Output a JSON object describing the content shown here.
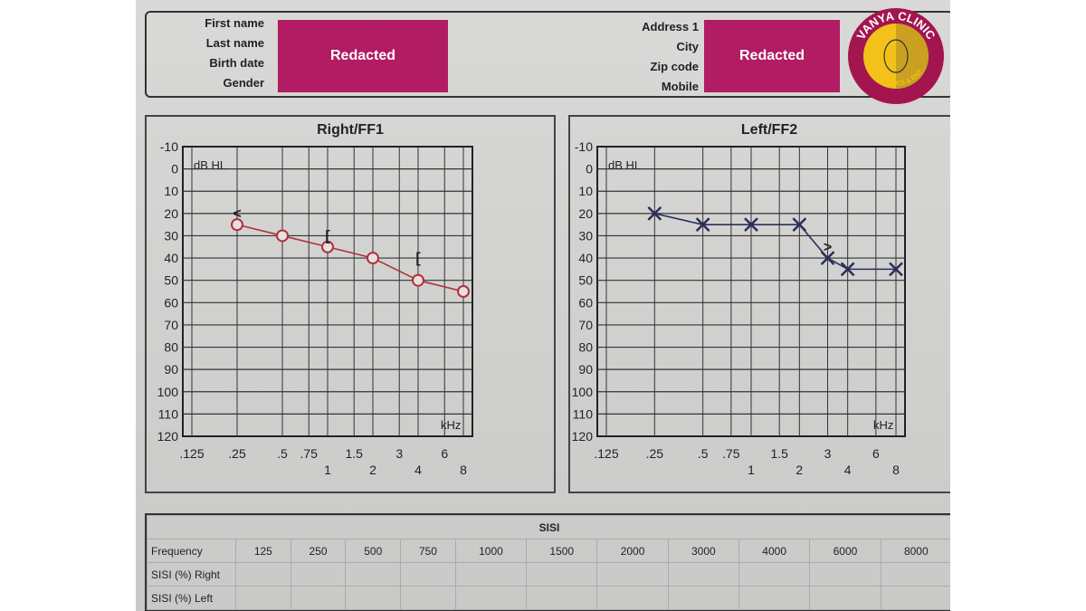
{
  "header": {
    "left_labels": [
      "First name",
      "Last name",
      "Birth date",
      "Gender"
    ],
    "right_labels": [
      "Address 1",
      "City",
      "Zip code",
      "Mobile"
    ],
    "redacted_label": "Redacted",
    "logo": {
      "text_top": "VANYA CLINIC",
      "text_bottom": "AESTHETICS & ENT",
      "colors": {
        "ring": "#a3154f",
        "face": "#f2c21a"
      }
    }
  },
  "chart_data": [
    {
      "type": "line",
      "title": "Right/FF1",
      "ylabel": "dB HL",
      "xlabel": "kHz",
      "x_scale": "log",
      "y_inverted": true,
      "ylim": [
        -10,
        120
      ],
      "y_ticks": [
        "-10",
        "0",
        "10",
        "20",
        "30",
        "40",
        "50",
        "60",
        "70",
        "80",
        "90",
        "100",
        "110",
        "120"
      ],
      "x_ticks_top": [
        ".125",
        ".25",
        ".5",
        ".75",
        "1.5",
        "3",
        "6"
      ],
      "x_ticks_bottom": [
        "1",
        "2",
        "4",
        "8"
      ],
      "grid": true,
      "series": [
        {
          "marker": "circle",
          "color": "#b0303a",
          "x": [
            0.25,
            0.5,
            1,
            2,
            4,
            8
          ],
          "y": [
            25,
            30,
            35,
            40,
            50,
            55
          ]
        },
        {
          "marker": "bone-right",
          "color": "#222222",
          "symbols": [
            "<",
            "[",
            "["
          ],
          "x": [
            0.25,
            1,
            4
          ],
          "y": [
            20,
            30,
            40
          ]
        }
      ]
    },
    {
      "type": "line",
      "title": "Left/FF2",
      "ylabel": "dB HL",
      "xlabel": "kHz",
      "x_scale": "log",
      "y_inverted": true,
      "ylim": [
        -10,
        120
      ],
      "y_ticks": [
        "-10",
        "0",
        "10",
        "20",
        "30",
        "40",
        "50",
        "60",
        "70",
        "80",
        "90",
        "100",
        "110",
        "120"
      ],
      "x_ticks_top": [
        ".125",
        ".25",
        ".5",
        ".75",
        "1.5",
        "3",
        "6"
      ],
      "x_ticks_bottom": [
        "1",
        "2",
        "4",
        "8"
      ],
      "grid": true,
      "series": [
        {
          "marker": "cross",
          "color": "#2a2f5a",
          "x": [
            0.25,
            0.5,
            1,
            2,
            3,
            4,
            8
          ],
          "y": [
            20,
            25,
            25,
            25,
            40,
            45,
            45
          ]
        },
        {
          "marker": "bone-left",
          "color": "#222222",
          "symbols": [
            ">"
          ],
          "x": [
            3
          ],
          "y": [
            35
          ]
        }
      ]
    }
  ],
  "sisi": {
    "title": "SISI",
    "frequency_label": "Frequency",
    "frequencies": [
      "125",
      "250",
      "500",
      "750",
      "1000",
      "1500",
      "2000",
      "3000",
      "4000",
      "6000",
      "8000"
    ],
    "rows": [
      "SISI (%) Right",
      "SISI (%) Left"
    ]
  }
}
